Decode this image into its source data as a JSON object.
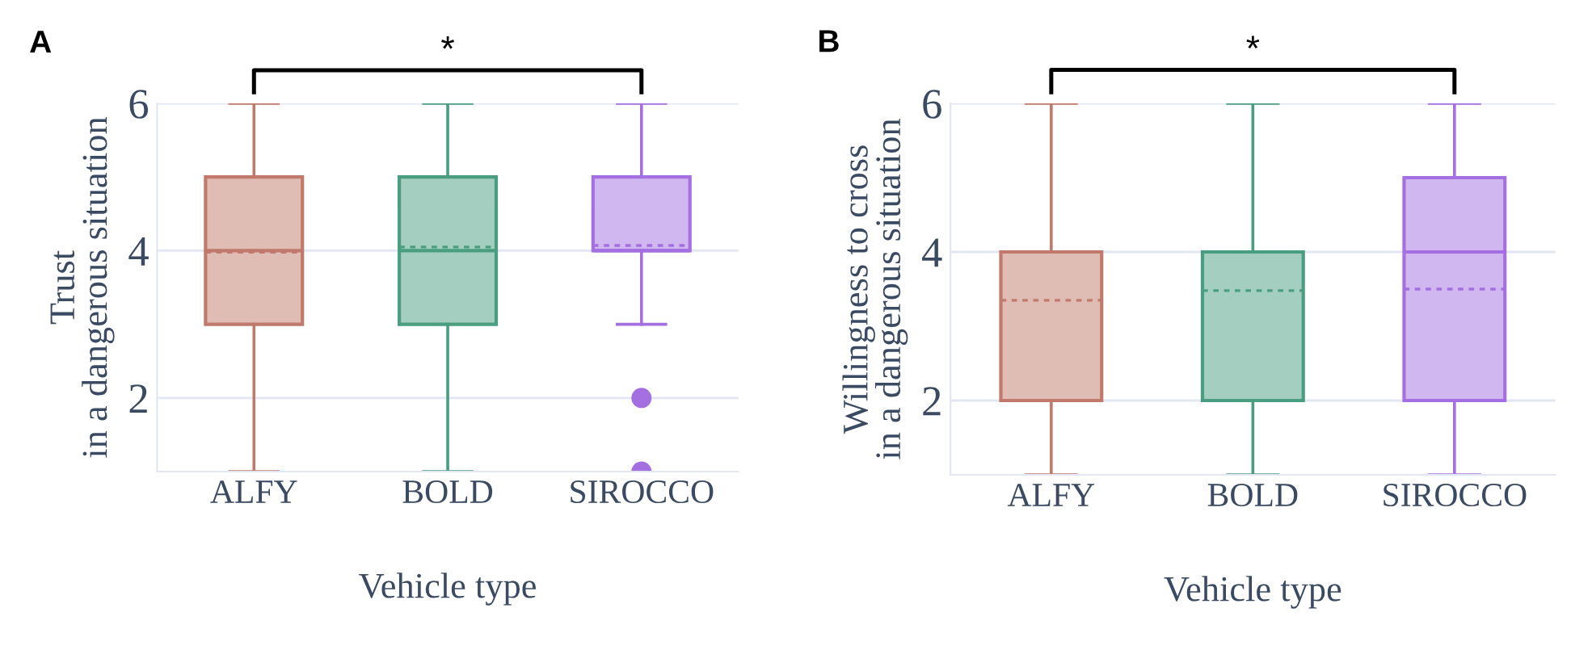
{
  "chart_data": [
    {
      "type": "box",
      "title": "A",
      "xlabel": "Vehicle type",
      "ylabel": "Trust\nin a dangerous situation",
      "categories": [
        "ALFY",
        "BOLD",
        "SIROCCO"
      ],
      "boxes": [
        {
          "low": 1,
          "q1": 3,
          "median": 4,
          "q3": 5,
          "high": 6,
          "mean": 3.98
        },
        {
          "low": 1,
          "q1": 3,
          "median": 4,
          "q3": 5,
          "high": 6,
          "mean": 4.05
        },
        {
          "low": 3,
          "q1": 4,
          "median": 4,
          "q3": 5,
          "high": 6,
          "mean": 4.07,
          "outliers": [
            2,
            1
          ]
        }
      ],
      "colors": [
        "#c0796a",
        "#4a9e80",
        "#a46fe0"
      ],
      "ylim": [
        1,
        6
      ],
      "yticks": [
        2,
        4,
        6
      ],
      "grid": "y",
      "annotations": [
        "*"
      ]
    },
    {
      "type": "box",
      "title": "B",
      "xlabel": "Vehicle type",
      "ylabel": "Willingness to cross\nin a dangerous situation",
      "categories": [
        "ALFY",
        "BOLD",
        "SIROCCO"
      ],
      "boxes": [
        {
          "low": 1,
          "q1": 2,
          "median": 4,
          "q3": 4,
          "high": 6,
          "mean": 3.35
        },
        {
          "low": 1,
          "q1": 2,
          "median": 4,
          "q3": 4,
          "high": 6,
          "mean": 3.48
        },
        {
          "low": 1,
          "q1": 2,
          "median": 4,
          "q3": 5,
          "high": 6,
          "mean": 3.5
        }
      ],
      "colors": [
        "#c0796a",
        "#4a9e80",
        "#a46fe0"
      ],
      "ylim": [
        1,
        6
      ],
      "yticks": [
        2,
        4,
        6
      ],
      "grid": "y",
      "annotations": [
        "*"
      ]
    }
  ]
}
